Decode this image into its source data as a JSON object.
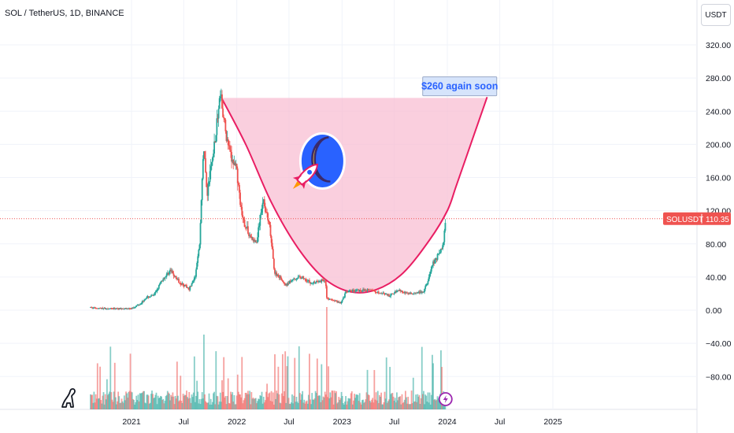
{
  "header": {
    "title": "SOL / TetherUS, 1D, BINANCE",
    "currency": "USDT"
  },
  "annotation": {
    "text": "$260 again soon"
  },
  "price_tag": {
    "symbol": "SOLUSDT",
    "value": "110.35"
  },
  "colors": {
    "up": "#26a69a",
    "down": "#ef5350",
    "shape_fill": "#f8bbd0",
    "shape_stroke": "#e91e63",
    "moon_circle": "#2962ff",
    "moon": "#ffca28",
    "label_bg": "#d6e4fb",
    "label_text": "#2962ff"
  },
  "icons": {
    "bottom_left": "dinosaur-icon",
    "bottom_marker": "lightning-bolt-icon",
    "sticker": "rocket-moon-icon"
  },
  "chart_data": {
    "type": "candlestick",
    "y_ticks": [
      320,
      280,
      240,
      200,
      160,
      120,
      80,
      40,
      0,
      -40,
      -80
    ],
    "y_tick_labels": [
      "320.00",
      "280.00",
      "240.00",
      "200.00",
      "160.00",
      "120.00",
      "80.00",
      "40.00",
      "0.00",
      "−40.00",
      "−80.00"
    ],
    "x_tick_labels": [
      "2021",
      "Jul",
      "2022",
      "Jul",
      "2023",
      "Jul",
      "2024",
      "Jul",
      "2025"
    ],
    "x_ticks": [
      "2021-01-01",
      "2021-07-01",
      "2022-01-01",
      "2022-07-01",
      "2023-01-01",
      "2023-07-01",
      "2024-01-01",
      "2024-07-01",
      "2025-01-01"
    ],
    "last_price": 110.35,
    "price_path": [
      [
        "2020-08-12",
        3
      ],
      [
        "2020-10-01",
        2
      ],
      [
        "2020-12-01",
        2
      ],
      [
        "2020-12-31",
        2
      ],
      [
        "2021-02-01",
        8
      ],
      [
        "2021-02-20",
        15
      ],
      [
        "2021-03-20",
        18
      ],
      [
        "2021-04-15",
        35
      ],
      [
        "2021-05-15",
        48
      ],
      [
        "2021-06-15",
        34
      ],
      [
        "2021-07-20",
        26
      ],
      [
        "2021-08-10",
        40
      ],
      [
        "2021-08-25",
        80
      ],
      [
        "2021-09-08",
        200
      ],
      [
        "2021-09-20",
        140
      ],
      [
        "2021-10-15",
        200
      ],
      [
        "2021-11-06",
        258
      ],
      [
        "2021-11-25",
        210
      ],
      [
        "2021-12-15",
        180
      ],
      [
        "2021-12-31",
        170
      ],
      [
        "2022-01-20",
        110
      ],
      [
        "2022-02-15",
        90
      ],
      [
        "2022-03-10",
        80
      ],
      [
        "2022-04-02",
        135
      ],
      [
        "2022-04-25",
        100
      ],
      [
        "2022-05-12",
        45
      ],
      [
        "2022-06-01",
        40
      ],
      [
        "2022-06-18",
        29
      ],
      [
        "2022-07-15",
        38
      ],
      [
        "2022-08-15",
        40
      ],
      [
        "2022-09-15",
        33
      ],
      [
        "2022-11-05",
        36
      ],
      [
        "2022-11-09",
        14
      ],
      [
        "2022-12-29",
        9
      ],
      [
        "2023-01-15",
        22
      ],
      [
        "2023-02-15",
        24
      ],
      [
        "2023-04-15",
        24
      ],
      [
        "2023-05-15",
        21
      ],
      [
        "2023-06-15",
        17
      ],
      [
        "2023-07-15",
        25
      ],
      [
        "2023-08-15",
        20
      ],
      [
        "2023-09-15",
        20
      ],
      [
        "2023-10-10",
        22
      ],
      [
        "2023-10-25",
        34
      ],
      [
        "2023-11-10",
        55
      ],
      [
        "2023-12-05",
        70
      ],
      [
        "2023-12-15",
        75
      ],
      [
        "2023-12-21",
        90
      ],
      [
        "2023-12-26",
        110.35
      ]
    ],
    "cup_curve": [
      [
        "2021-11-06",
        258
      ],
      [
        "2022-02-01",
        200
      ],
      [
        "2022-05-01",
        130
      ],
      [
        "2022-08-01",
        75
      ],
      [
        "2022-11-01",
        38
      ],
      [
        "2023-02-01",
        22
      ],
      [
        "2023-05-01",
        25
      ],
      [
        "2023-08-01",
        45
      ],
      [
        "2023-11-01",
        85
      ],
      [
        "2024-01-01",
        120
      ],
      [
        "2024-02-01",
        150
      ],
      [
        "2024-04-01",
        210
      ],
      [
        "2024-05-18",
        257
      ]
    ],
    "cup_top": 256,
    "annotation_anchor": [
      "2024-02-13",
      270
    ],
    "sticker_anchor": [
      "2022-10-25",
      180
    ]
  }
}
